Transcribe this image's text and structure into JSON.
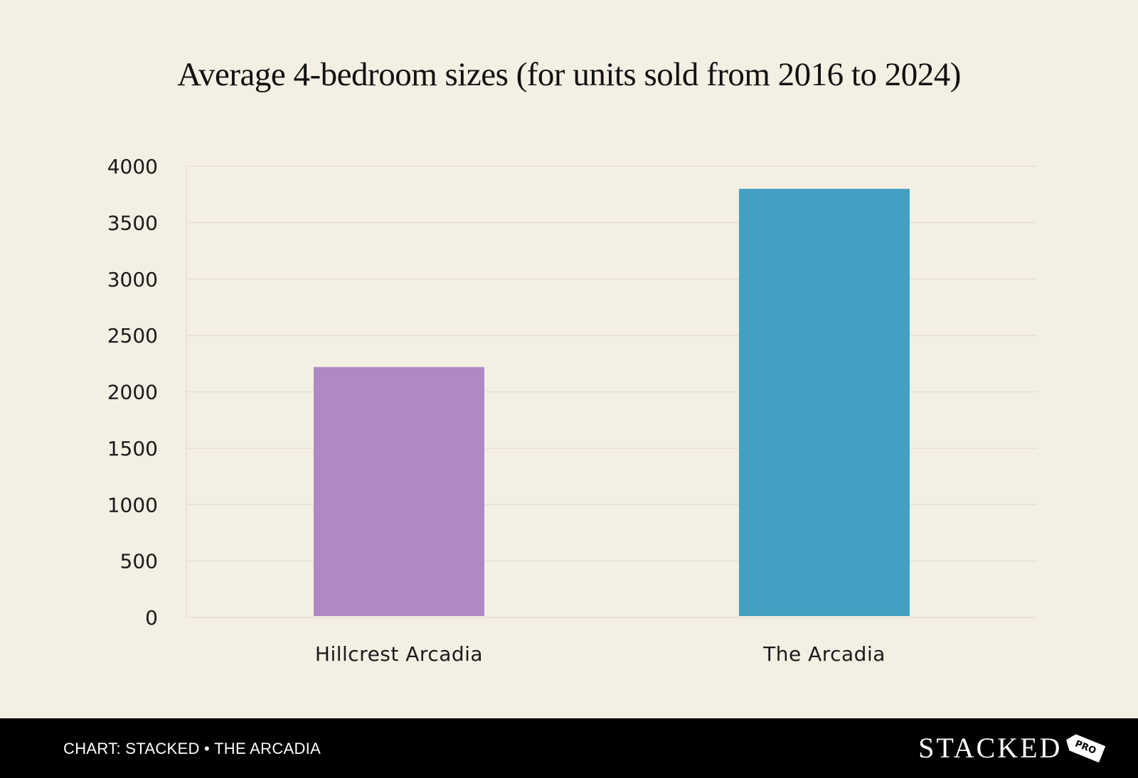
{
  "chart_data": {
    "type": "bar",
    "title": "Average 4-bedroom sizes (for units sold from 2016 to 2024)",
    "xlabel": "",
    "ylabel": "",
    "categories": [
      "Hillcrest Arcadia",
      "The Arcadia"
    ],
    "values": [
      2220,
      3800
    ],
    "bar_colors": [
      "#ae89c6",
      "#44a0c2"
    ],
    "ylim": [
      0,
      4000
    ],
    "yticks": [
      "0",
      "500",
      "1000",
      "1500",
      "2000",
      "2500",
      "3000",
      "3500",
      "4000"
    ],
    "grid": true,
    "legend": "none"
  },
  "footer": {
    "credit": "CHART: STACKED • THE ARCADIA",
    "brand": "STACKED",
    "brand_tag": "PRO"
  },
  "colors": {
    "background": "#f4efe3",
    "footer": "#000000",
    "gridline": "#e6e0d2"
  }
}
